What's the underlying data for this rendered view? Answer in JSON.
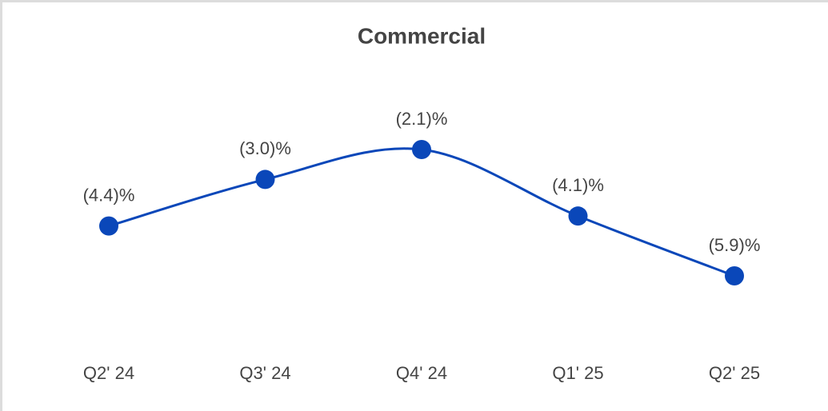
{
  "chart_data": {
    "type": "line",
    "title": "Commercial",
    "categories": [
      "Q2' 24",
      "Q3' 24",
      "Q4' 24",
      "Q1' 25",
      "Q2' 25"
    ],
    "series": [
      {
        "name": "Commercial",
        "color": "#0a47b9",
        "values": [
          -4.4,
          -3.0,
          -2.1,
          -4.1,
          -5.9
        ],
        "value_labels": [
          "(4.4)%",
          "(3.0)%",
          "(2.1)%",
          "(4.1)%",
          "(5.9)%"
        ]
      }
    ]
  }
}
